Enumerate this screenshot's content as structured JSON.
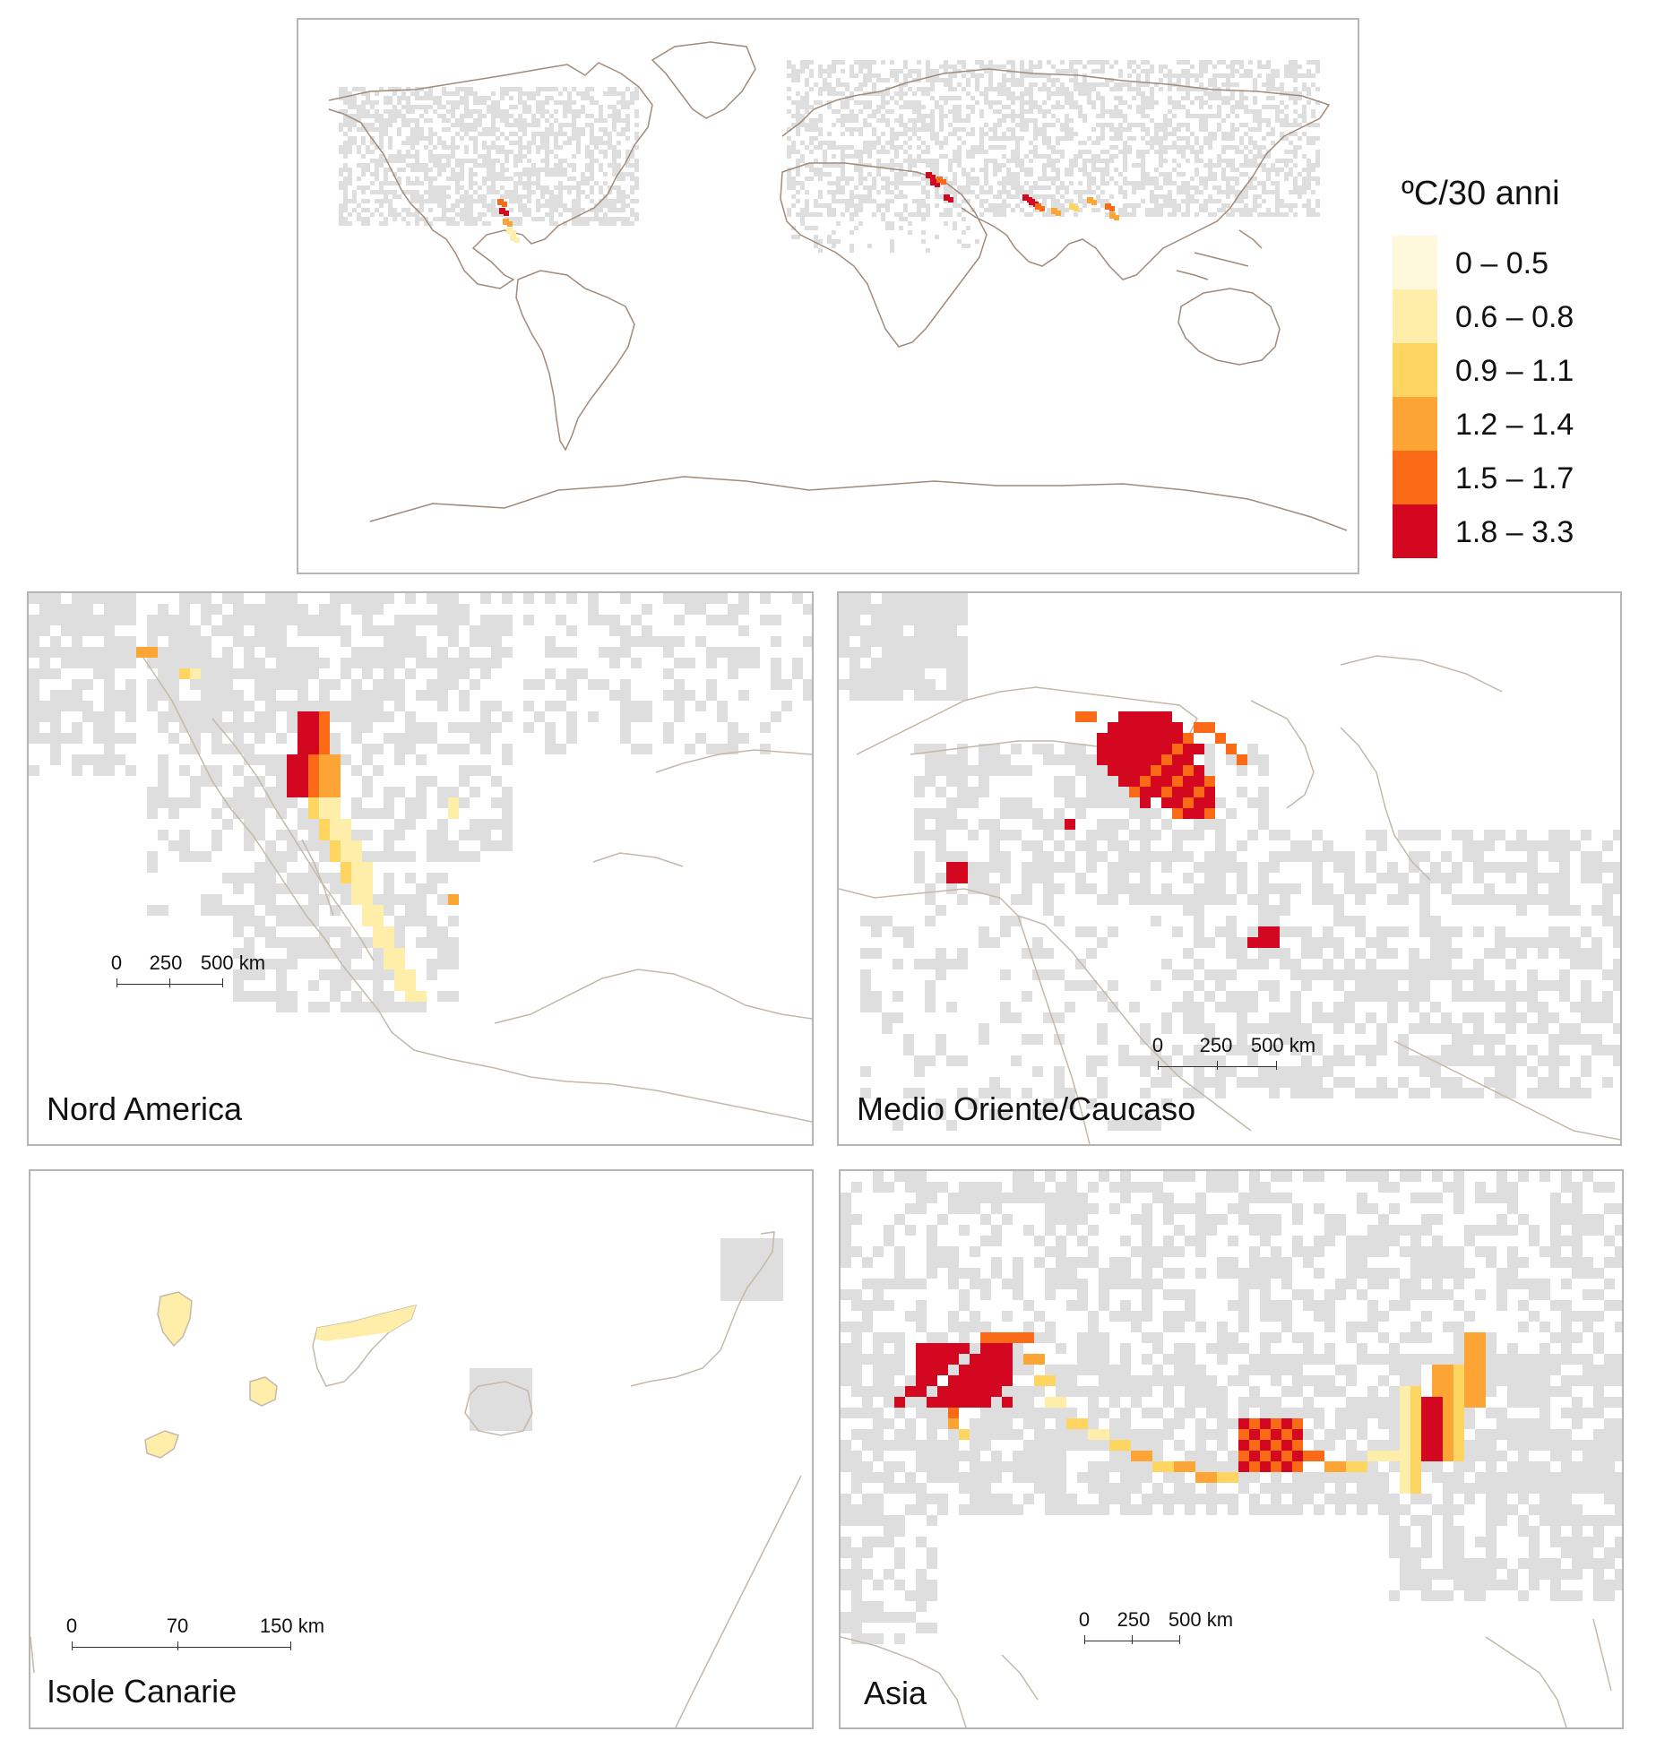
{
  "legend": {
    "title": "ºC/30 anni",
    "classes": [
      {
        "label": "0 – 0.5",
        "color": "#fef9dc"
      },
      {
        "label": "0.6 – 0.8",
        "color": "#feeeaa"
      },
      {
        "label": "0.9 – 1.1",
        "color": "#fdd560"
      },
      {
        "label": "1.2 – 1.4",
        "color": "#fca434"
      },
      {
        "label": "1.5 – 1.7",
        "color": "#fb6a16"
      },
      {
        "label": "1.8 – 3.3",
        "color": "#d3071f"
      }
    ]
  },
  "colors": {
    "land_cells": "#dedede",
    "coastline": "#c4b8aa",
    "coast_world": "#a08a78",
    "frame": "#b5b5b5"
  },
  "panels": {
    "world": {
      "title": ""
    },
    "north_america": {
      "title": "Nord America",
      "scale": [
        "0",
        "250",
        "500 km"
      ]
    },
    "middle_east": {
      "title": "Medio Oriente/Caucaso",
      "scale": [
        "0",
        "250",
        "500 km"
      ]
    },
    "canary": {
      "title": "Isole Canarie",
      "scale": [
        "0",
        "70",
        "150 km"
      ]
    },
    "asia": {
      "title": "Asia",
      "scale": [
        "0",
        "250",
        "500 km"
      ]
    }
  }
}
